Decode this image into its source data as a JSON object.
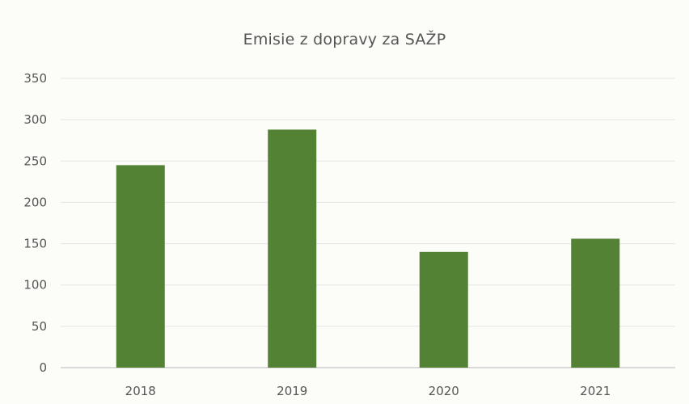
{
  "chart_data": {
    "type": "bar",
    "title": "Emisie z dopravy za SAŽP",
    "categories": [
      "2018",
      "2019",
      "2020",
      "2021"
    ],
    "values": [
      245,
      288,
      140,
      156
    ],
    "xlabel": "",
    "ylabel": "",
    "ylim": [
      0,
      350
    ],
    "yticks": [
      "0",
      "50",
      "100",
      "150",
      "200",
      "250",
      "300",
      "350"
    ],
    "grid": true,
    "legend": "none",
    "bar_color": "#548235",
    "grid_color": "#e4e4e4"
  }
}
